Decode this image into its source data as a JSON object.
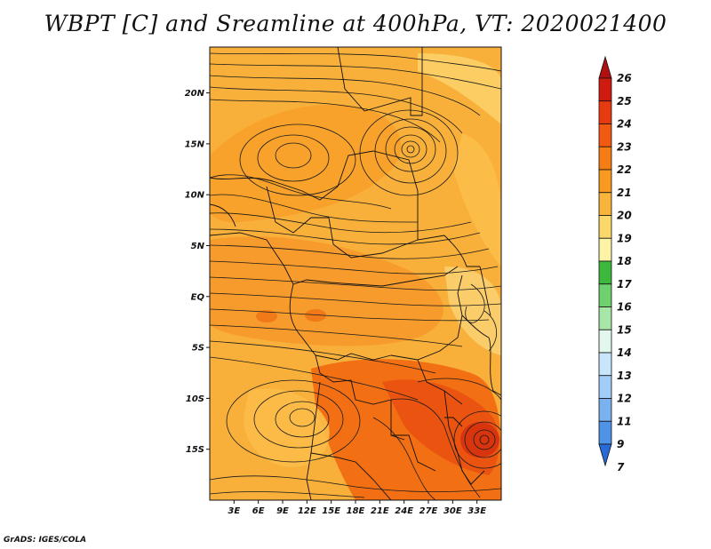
{
  "title": "WBPT [C] and Sreamline at 400hPa, VT: 2020021400",
  "credit": "GrADS: IGES/COLA",
  "map": {
    "lon_range": [
      0,
      36
    ],
    "lat_range": [
      -20,
      24.5
    ],
    "lat_ticks": [
      {
        "value": 20,
        "label": "20N"
      },
      {
        "value": 15,
        "label": "15N"
      },
      {
        "value": 10,
        "label": "10N"
      },
      {
        "value": 5,
        "label": "5N"
      },
      {
        "value": 0,
        "label": "EQ"
      },
      {
        "value": -5,
        "label": "5S"
      },
      {
        "value": -10,
        "label": "10S"
      },
      {
        "value": -15,
        "label": "15S"
      }
    ],
    "lon_ticks": [
      {
        "value": 3,
        "label": "3E"
      },
      {
        "value": 6,
        "label": "6E"
      },
      {
        "value": 9,
        "label": "9E"
      },
      {
        "value": 12,
        "label": "12E"
      },
      {
        "value": 15,
        "label": "15E"
      },
      {
        "value": 18,
        "label": "18E"
      },
      {
        "value": 21,
        "label": "21E"
      },
      {
        "value": 24,
        "label": "24E"
      },
      {
        "value": 27,
        "label": "27E"
      },
      {
        "value": 30,
        "label": "30E"
      },
      {
        "value": 33,
        "label": "33E"
      }
    ],
    "background_color": "#f6b63c",
    "streamline_color": "#1a1a1a",
    "border_color": "#111111"
  },
  "colorbar": {
    "levels": [
      "26",
      "25",
      "24",
      "23",
      "22",
      "21",
      "20",
      "19",
      "18",
      "17",
      "16",
      "15",
      "14",
      "13",
      "12",
      "11",
      "9",
      "7"
    ],
    "colors": [
      "#b01010",
      "#cf1a10",
      "#e83a10",
      "#f25a12",
      "#f67d14",
      "#f89a20",
      "#f9b43a",
      "#fbd86a",
      "#fdf3a6",
      "#3cb83c",
      "#6fd06f",
      "#a8e6a8",
      "#e2f8ee",
      "#c8e6fb",
      "#a2cdf7",
      "#7ab2f0",
      "#4e93e6",
      "#2a6ad6"
    ]
  }
}
